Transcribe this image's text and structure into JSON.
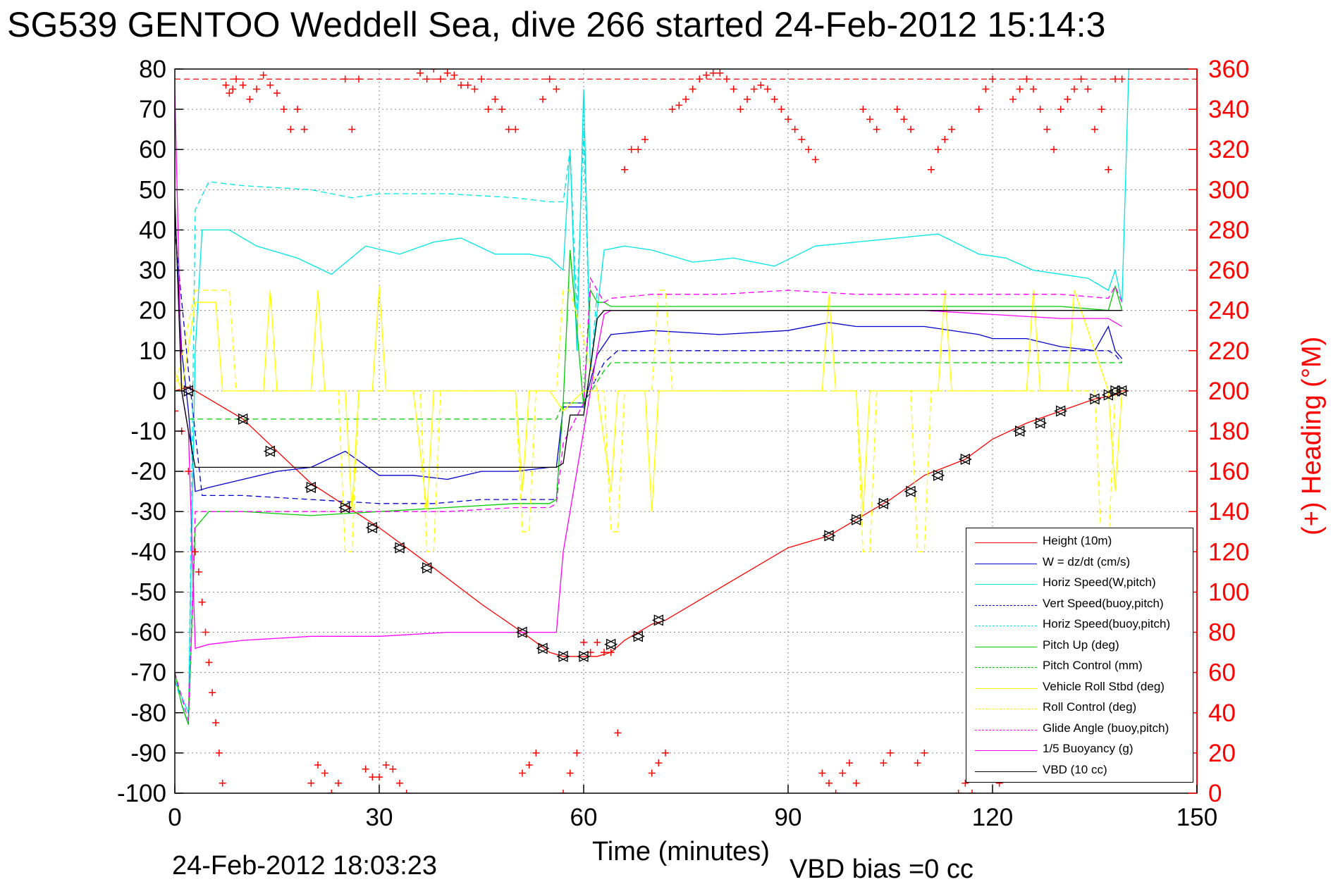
{
  "title": "SG539 GENTOO Weddell Sea, dive 266 started 24-Feb-2012 15:14:3",
  "timestamp": "24-Feb-2012 18:03:23",
  "vbd_bias": "VBD bias =0 cc",
  "chart_data": {
    "type": "line",
    "xlabel": "Time (minutes)",
    "ylabel": "",
    "ylabel_right": "(+) Heading (°M)",
    "xlim": [
      0,
      150
    ],
    "ylim": [
      -100,
      80
    ],
    "ylim_right": [
      0,
      360
    ],
    "x_ticks": [
      0,
      30,
      60,
      90,
      120,
      150
    ],
    "y_ticks": [
      80,
      70,
      60,
      50,
      40,
      30,
      20,
      10,
      0,
      -10,
      -20,
      -30,
      -40,
      -50,
      -60,
      -70,
      -80,
      -90,
      -100
    ],
    "y_ticks_right": [
      360,
      340,
      320,
      300,
      280,
      260,
      240,
      220,
      200,
      180,
      160,
      140,
      120,
      100,
      80,
      60,
      40,
      20,
      0
    ],
    "grid": true,
    "legend_position": "bottom-right",
    "colors": {
      "heading": "#ff0000",
      "height": "#ff0000",
      "w": "#0000cc",
      "horiz_speed": "#00e5e5",
      "pitch": "#00cc00",
      "roll": "#ffff00",
      "glide": "#ff00ff",
      "vbd": "#000000"
    },
    "series": [
      {
        "name": "Height (10m)",
        "color": "#ff0000",
        "dash": "solid",
        "x": [
          0,
          2,
          4,
          10,
          20,
          30,
          38,
          45,
          51,
          55,
          57,
          60,
          62,
          64,
          66,
          70,
          72,
          80,
          90,
          96,
          100,
          105,
          110,
          116,
          120,
          125,
          130,
          135,
          138,
          139,
          140
        ],
        "y": [
          0,
          1,
          -1,
          -7,
          -23,
          -34,
          -44,
          -53,
          -60,
          -65,
          -66,
          -66,
          -66,
          -65,
          -62,
          -58,
          -57,
          -49,
          -39,
          -36,
          -32,
          -27,
          -21,
          -17,
          -12,
          -8,
          -5,
          -2,
          -1,
          0,
          0
        ]
      },
      {
        "name": "W = dz/dt (cm/s)",
        "color": "#0000cc",
        "dash": "solid",
        "x": [
          0,
          1,
          2,
          3,
          5,
          10,
          15,
          20,
          25,
          30,
          35,
          40,
          45,
          50,
          55,
          56,
          57,
          60,
          62,
          64,
          70,
          80,
          90,
          96,
          100,
          110,
          118,
          120,
          125,
          130,
          135,
          137,
          138,
          139
        ],
        "y": [
          45,
          10,
          -5,
          -25,
          -24,
          -22,
          -20,
          -19,
          -15,
          -21,
          -21,
          -22,
          -20,
          -20,
          -19,
          -19,
          -4,
          -4,
          9,
          14,
          15,
          14,
          15,
          17,
          16,
          16,
          14,
          13,
          13,
          11,
          10,
          16,
          10,
          8
        ]
      },
      {
        "name": "Horiz Speed(W,pitch)",
        "color": "#00e5e5",
        "dash": "solid",
        "x": [
          0,
          2,
          3,
          4,
          8,
          12,
          18,
          23,
          28,
          33,
          38,
          42,
          47,
          52,
          55,
          57,
          58,
          59,
          60,
          61,
          62,
          63,
          66,
          70,
          76,
          82,
          88,
          94,
          100,
          106,
          112,
          118,
          122,
          126,
          130,
          134,
          137,
          138,
          139,
          140
        ],
        "y": [
          -72,
          -80,
          10,
          40,
          40,
          36,
          33,
          29,
          36,
          34,
          37,
          38,
          34,
          34,
          33,
          30,
          60,
          10,
          75,
          5,
          20,
          35,
          36,
          35,
          32,
          33,
          31,
          36,
          37,
          38,
          39,
          34,
          33,
          30,
          29,
          28,
          25,
          30,
          22,
          80
        ]
      },
      {
        "name": "Vert Speed(buoy,pitch)",
        "color": "#0000cc",
        "dash": "dashed",
        "x": [
          0,
          2,
          4,
          10,
          20,
          30,
          38,
          45,
          55,
          56,
          57,
          60,
          63,
          65,
          70,
          80,
          90,
          100,
          110,
          120,
          130,
          137,
          138,
          139
        ],
        "y": [
          40,
          5,
          -26,
          -26,
          -27,
          -28,
          -28,
          -27,
          -27,
          -27,
          -3,
          -3,
          7,
          10,
          10,
          10,
          10,
          10,
          10,
          10,
          10,
          10,
          9,
          7
        ]
      },
      {
        "name": "Horiz Speed(buoy,pitch)",
        "color": "#00e5e5",
        "dash": "dashed",
        "x": [
          0,
          2,
          3,
          5,
          10,
          20,
          26,
          30,
          40,
          50,
          55,
          57,
          58,
          59,
          60,
          61,
          62
        ],
        "y": [
          -72,
          -83,
          45,
          52,
          51,
          50,
          48,
          49,
          49,
          48,
          47,
          47,
          60,
          20,
          65,
          5,
          25
        ]
      },
      {
        "name": "Pitch Up (deg)",
        "color": "#00cc00",
        "dash": "solid",
        "x": [
          0,
          1,
          2,
          3,
          5,
          10,
          20,
          30,
          40,
          50,
          55,
          56,
          57,
          58,
          60,
          61,
          62,
          63,
          64,
          70,
          80,
          90,
          100,
          110,
          120,
          130,
          137,
          138,
          139
        ],
        "y": [
          -70,
          -78,
          -83,
          -34,
          -30,
          -30,
          -31,
          -30,
          -29,
          -28,
          -28,
          -27,
          -3,
          35,
          -4,
          25,
          22,
          22,
          21,
          21,
          21,
          21,
          21,
          21,
          21,
          21,
          20,
          26,
          20
        ]
      },
      {
        "name": "Pitch Control (mm)",
        "color": "#00cc00",
        "dash": "dashed",
        "x": [
          2,
          4,
          10,
          20,
          30,
          40,
          50,
          55,
          56,
          57,
          60,
          63,
          64,
          70,
          80,
          90,
          100,
          110,
          120,
          130,
          139
        ],
        "y": [
          -7,
          -7,
          -7,
          -7,
          -7,
          -7,
          -7,
          -7,
          -7,
          -3,
          -3,
          5,
          7,
          7,
          7,
          7,
          7,
          7,
          7,
          7,
          7
        ]
      },
      {
        "name": "Vehicle Roll Stbd (deg)",
        "color": "#ffff00",
        "dash": "solid",
        "x": [
          0,
          1,
          3,
          6,
          7,
          8,
          10,
          13,
          14,
          15,
          20,
          21,
          22,
          25,
          26,
          27,
          29,
          30,
          31,
          35,
          37,
          38,
          45,
          50,
          51,
          52,
          55,
          57,
          60,
          62,
          64,
          65,
          66,
          69,
          70,
          71,
          80,
          90,
          95,
          96,
          97,
          100,
          101,
          102,
          110,
          112,
          113,
          114,
          120,
          125,
          126,
          127,
          130,
          131,
          132,
          137,
          138,
          139
        ],
        "y": [
          5,
          0,
          22,
          22,
          0,
          0,
          0,
          0,
          25,
          0,
          0,
          25,
          0,
          0,
          -30,
          0,
          0,
          26,
          0,
          0,
          -30,
          0,
          0,
          0,
          -25,
          0,
          0,
          -5,
          0,
          0,
          -25,
          0,
          0,
          0,
          -30,
          0,
          0,
          0,
          0,
          24,
          0,
          0,
          -30,
          0,
          0,
          0,
          25,
          0,
          0,
          0,
          25,
          0,
          0,
          0,
          25,
          0,
          -25,
          0
        ]
      },
      {
        "name": "Roll Control (deg)",
        "color": "#ffff00",
        "dash": "dashed",
        "x": [
          0,
          3,
          8,
          9,
          24,
          25,
          26,
          27,
          36,
          37,
          38,
          39,
          50,
          51,
          52,
          53,
          56,
          57,
          58,
          62,
          63,
          64,
          65,
          66,
          70,
          71,
          72,
          73,
          100,
          101,
          102,
          103,
          108,
          109,
          110,
          111,
          135,
          136,
          137,
          138,
          139
        ],
        "y": [
          0,
          25,
          25,
          0,
          0,
          -40,
          -40,
          0,
          0,
          -40,
          -40,
          0,
          0,
          -35,
          -35,
          0,
          0,
          25,
          25,
          0,
          0,
          -35,
          -35,
          0,
          0,
          25,
          25,
          0,
          0,
          -40,
          -40,
          0,
          0,
          -40,
          -40,
          0,
          0,
          -40,
          -40,
          0,
          0
        ]
      },
      {
        "name": "Glide Angle (buoy,pitch)",
        "color": "#ff00ff",
        "dash": "dashed",
        "x": [
          0,
          2,
          3,
          4,
          10,
          20,
          30,
          40,
          50,
          55,
          56,
          57,
          60,
          61,
          63,
          64,
          70,
          80,
          90,
          100,
          110,
          120,
          130,
          137,
          138,
          139
        ],
        "y": [
          -70,
          -82,
          -30,
          -30,
          -30,
          -30,
          -30,
          -30,
          -29,
          -29,
          -28,
          -13,
          -3,
          28,
          22,
          23,
          24,
          24,
          25,
          24,
          24,
          24,
          24,
          23,
          26,
          22
        ]
      },
      {
        "name": "1/5 Buoyancy (g)",
        "color": "#ff00ff",
        "dash": "solid",
        "x": [
          0,
          1,
          2,
          3,
          5,
          10,
          20,
          30,
          40,
          50,
          55,
          56,
          57,
          60,
          62,
          63,
          64,
          70,
          80,
          90,
          100,
          110,
          120,
          130,
          137,
          139
        ],
        "y": [
          75,
          0,
          -10,
          -64,
          -63,
          -62,
          -61,
          -61,
          -60,
          -60,
          -60,
          -60,
          -40,
          -10,
          10,
          19,
          20,
          20,
          20,
          20,
          20,
          20,
          19,
          18,
          18,
          16
        ]
      },
      {
        "name": "VBD (10 cc)",
        "color": "#000000",
        "dash": "solid",
        "x": [
          0,
          1,
          2,
          3,
          10,
          20,
          30,
          40,
          50,
          55,
          56,
          57,
          58,
          60,
          62,
          63,
          70,
          80,
          90,
          100,
          110,
          120,
          130,
          137,
          138,
          139
        ],
        "y": [
          48,
          0,
          -10,
          -19,
          -19,
          -19,
          -19,
          -19,
          -19,
          -19,
          -19,
          -18,
          -6,
          -6,
          18,
          20,
          20,
          20,
          20,
          20,
          20,
          20,
          20,
          20,
          20,
          20
        ]
      }
    ],
    "heading_series": {
      "name": "Heading",
      "axis": "right",
      "color": "#ff0000",
      "marker": "+",
      "ref_line": 355,
      "x": [
        0,
        1,
        2,
        3,
        3.5,
        4,
        4.5,
        5,
        5.5,
        6,
        6.5,
        7,
        7.5,
        8,
        8.5,
        9,
        10,
        11,
        12,
        13,
        14,
        15,
        16,
        17,
        18,
        19,
        20,
        21,
        22,
        23,
        24,
        25,
        26,
        27,
        28,
        29,
        30,
        31,
        32,
        33,
        34,
        36,
        37,
        38,
        39,
        40,
        41,
        42,
        43,
        44,
        45,
        46,
        47,
        48,
        49,
        50,
        51,
        52,
        53,
        54,
        55,
        56,
        57,
        58,
        59,
        60,
        61,
        62,
        63,
        64,
        65,
        66,
        67,
        68,
        69,
        70,
        71,
        72,
        73,
        74,
        75,
        76,
        77,
        78,
        79,
        80,
        81,
        82,
        83,
        84,
        85,
        86,
        87,
        88,
        89,
        90,
        91,
        92,
        93,
        94,
        95,
        96,
        97,
        98,
        99,
        100,
        101,
        102,
        103,
        104,
        105,
        106,
        107,
        108,
        109,
        110,
        111,
        112,
        113,
        114,
        115,
        116,
        117,
        118,
        119,
        120,
        121,
        122,
        123,
        124,
        125,
        126,
        127,
        128,
        129,
        130,
        131,
        132,
        133,
        134,
        135,
        136,
        137,
        138,
        139
      ],
      "y": [
        190,
        180,
        160,
        120,
        110,
        95,
        80,
        65,
        50,
        35,
        20,
        5,
        352,
        348,
        350,
        355,
        352,
        345,
        350,
        357,
        352,
        348,
        340,
        330,
        340,
        330,
        5,
        14,
        10,
        0,
        5,
        355,
        330,
        355,
        12,
        8,
        8,
        14,
        12,
        5,
        0,
        358,
        355,
        360,
        355,
        358,
        357,
        352,
        352,
        350,
        355,
        340,
        345,
        340,
        330,
        330,
        10,
        14,
        20,
        345,
        355,
        350,
        0,
        10,
        20,
        75,
        70,
        75,
        70,
        70,
        30,
        310,
        320,
        320,
        325,
        10,
        15,
        20,
        340,
        342,
        345,
        350,
        355,
        357,
        358,
        358,
        355,
        350,
        340,
        345,
        350,
        352,
        350,
        345,
        340,
        335,
        330,
        325,
        320,
        315,
        10,
        5,
        0,
        10,
        15,
        5,
        340,
        335,
        330,
        15,
        20,
        340,
        335,
        330,
        15,
        20,
        310,
        320,
        325,
        330,
        0,
        5,
        0,
        340,
        350,
        355,
        5,
        10,
        345,
        350,
        355,
        350,
        340,
        330,
        320,
        340,
        345,
        350,
        355,
        350,
        330,
        340,
        310,
        355,
        355
      ]
    }
  }
}
